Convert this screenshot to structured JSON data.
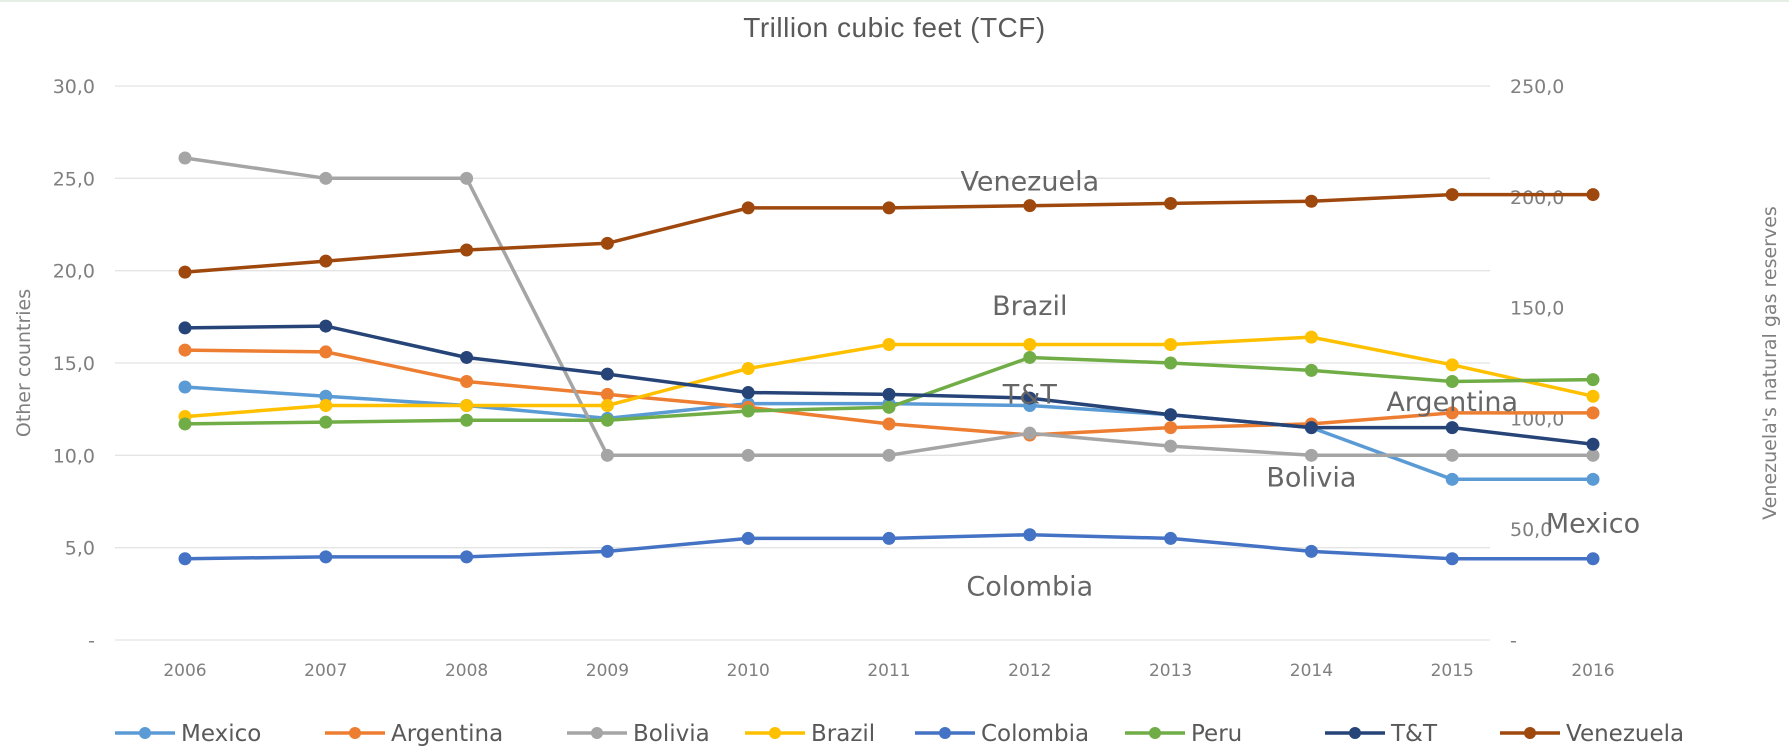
{
  "chart_data": {
    "type": "line",
    "title": "Trillion cubic feet (TCF)",
    "xlabel": "",
    "ylabel": "Other countries",
    "y2label": "Venezuela's natural gas reserves",
    "categories": [
      "2006",
      "2007",
      "2008",
      "2009",
      "2010",
      "2011",
      "2012",
      "2013",
      "2014",
      "2015",
      "2016"
    ],
    "ylim": [
      0,
      30
    ],
    "y2lim": [
      0,
      250
    ],
    "yticks": [
      "-",
      "5,0",
      "10,0",
      "15,0",
      "20,0",
      "25,0",
      "30,0"
    ],
    "y2ticks": [
      "-",
      "50,0",
      "100,0",
      "150,0",
      "200,0",
      "250,0"
    ],
    "grid": true,
    "legend_position": "bottom",
    "series": [
      {
        "name": "Mexico",
        "axis": "left",
        "color": "#5b9bd5",
        "values": [
          13.7,
          13.2,
          12.7,
          12.0,
          12.8,
          12.8,
          12.7,
          12.2,
          11.5,
          8.7,
          8.7
        ]
      },
      {
        "name": "Argentina",
        "axis": "left",
        "color": "#ed7d31",
        "values": [
          15.7,
          15.6,
          14.0,
          13.3,
          12.6,
          11.7,
          11.1,
          11.5,
          11.7,
          12.3,
          12.3
        ]
      },
      {
        "name": "Bolivia",
        "axis": "left",
        "color": "#a5a5a5",
        "values": [
          26.1,
          25.0,
          25.0,
          10.0,
          10.0,
          10.0,
          11.2,
          10.5,
          10.0,
          10.0,
          10.0
        ]
      },
      {
        "name": "Brazil",
        "axis": "left",
        "color": "#ffc000",
        "values": [
          12.1,
          12.7,
          12.7,
          12.7,
          14.7,
          16.0,
          16.0,
          16.0,
          16.4,
          14.9,
          13.2
        ]
      },
      {
        "name": "Colombia",
        "axis": "left",
        "color": "#4472c4",
        "values": [
          4.4,
          4.5,
          4.5,
          4.8,
          5.5,
          5.5,
          5.7,
          5.5,
          4.8,
          4.4,
          4.4
        ]
      },
      {
        "name": "Peru",
        "axis": "left",
        "color": "#70ad47",
        "values": [
          11.7,
          11.8,
          11.9,
          11.9,
          12.4,
          12.6,
          15.3,
          15.0,
          14.6,
          14.0,
          14.1
        ]
      },
      {
        "name": "T&T",
        "axis": "left",
        "color": "#264478",
        "values": [
          16.9,
          17.0,
          15.3,
          14.4,
          13.4,
          13.3,
          13.1,
          12.2,
          11.5,
          11.5,
          10.6
        ]
      },
      {
        "name": "Venezuela",
        "axis": "right",
        "color": "#9e480e",
        "values": [
          166.0,
          171.0,
          176.0,
          179.0,
          195.0,
          195.0,
          196.0,
          197.0,
          198.0,
          201.0,
          201.0
        ]
      }
    ],
    "annotations": [
      {
        "text": "Venezuela",
        "x": "2012",
        "y2": 207
      },
      {
        "text": "Brazil",
        "x": "2012",
        "y": 18.1
      },
      {
        "text": "T&T",
        "x": "2012",
        "y": 13.3
      },
      {
        "text": "Argentina",
        "x": "2015",
        "y": 12.9
      },
      {
        "text": "Bolivia",
        "x": "2014",
        "y": 8.8
      },
      {
        "text": "Mexico",
        "x": "2016",
        "y": 6.3
      },
      {
        "text": "Colombia",
        "x": "2012",
        "y": 2.9
      }
    ],
    "arrows_color": "#ff0000",
    "arrows": [
      {
        "from": [
          14.8,
          15.4
        ],
        "to": [
          16.0,
          15.4
        ]
      },
      {
        "from": [
          14.8,
          11.2
        ],
        "to": [
          16.0,
          11.8
        ]
      },
      {
        "from": [
          14.8,
          2.8
        ],
        "to": [
          16.0,
          2.6
        ]
      }
    ]
  }
}
